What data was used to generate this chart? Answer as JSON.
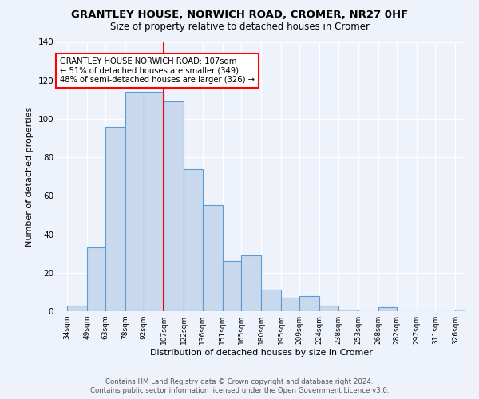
{
  "title": "GRANTLEY HOUSE, NORWICH ROAD, CROMER, NR27 0HF",
  "subtitle": "Size of property relative to detached houses in Cromer",
  "xlabel": "Distribution of detached houses by size in Cromer",
  "ylabel": "Number of detached properties",
  "categories": [
    "34sqm",
    "49sqm",
    "63sqm",
    "78sqm",
    "92sqm",
    "107sqm",
    "122sqm",
    "136sqm",
    "151sqm",
    "165sqm",
    "180sqm",
    "195sqm",
    "209sqm",
    "224sqm",
    "238sqm",
    "253sqm",
    "268sqm",
    "282sqm",
    "297sqm",
    "311sqm",
    "326sqm"
  ],
  "heights": [
    3,
    33,
    96,
    114,
    114,
    109,
    74,
    55,
    26,
    29,
    11,
    7,
    8,
    3,
    1,
    0,
    2,
    0,
    0,
    0,
    1
  ],
  "left_edges": [
    34,
    49,
    63,
    78,
    92,
    107,
    122,
    136,
    151,
    165,
    180,
    195,
    209,
    224,
    238,
    253,
    268,
    282,
    297,
    311,
    326
  ],
  "bar_color": "#c9d9ed",
  "bar_edge_color": "#5b9bd5",
  "red_line_x": 107,
  "annotation_title": "GRANTLEY HOUSE NORWICH ROAD: 107sqm",
  "annotation_line1": "← 51% of detached houses are smaller (349)",
  "annotation_line2": "48% of semi-detached houses are larger (326) →",
  "bg_color": "#eef2fa",
  "footer": "Contains HM Land Registry data © Crown copyright and database right 2024.\nContains public sector information licensed under the Open Government Licence v3.0.",
  "ylim": [
    0,
    140
  ],
  "xlim_left": 27,
  "xlim_right": 333
}
